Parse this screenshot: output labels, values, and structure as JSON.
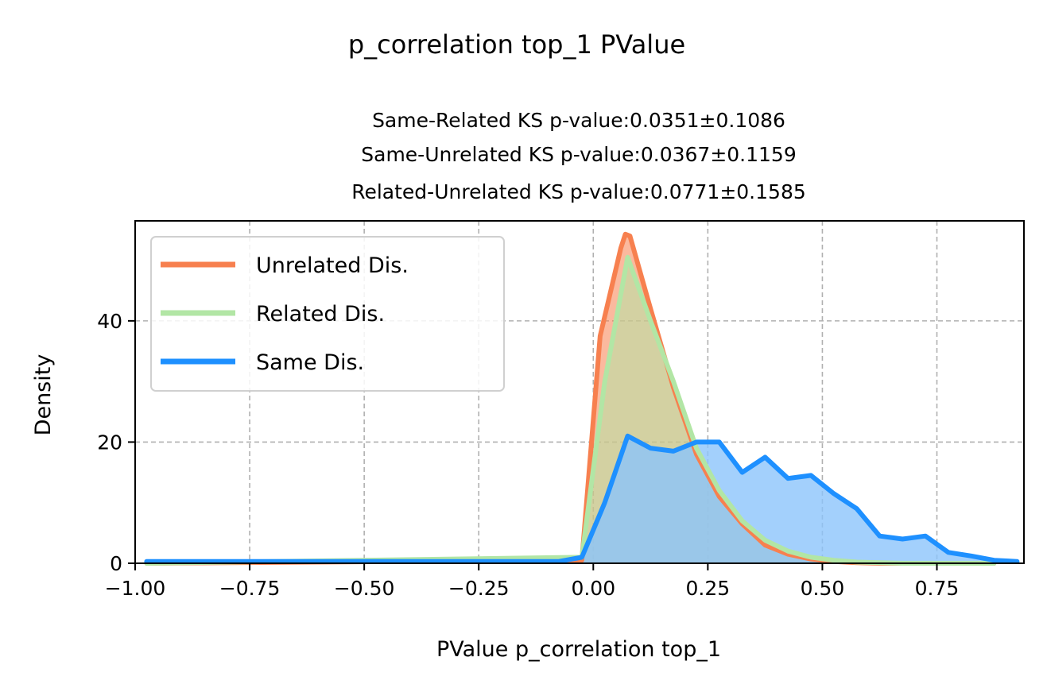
{
  "chart_data": {
    "type": "area",
    "title": "p_correlation top_1 PValue",
    "subtitle_lines": [
      "Same-Related KS p-value:0.0351±0.1086",
      "Same-Unrelated KS p-value:0.0367±0.1159",
      "Related-Unrelated KS p-value:0.0771±0.1585"
    ],
    "xlabel": "PValue p_correlation top_1",
    "ylabel": "Density",
    "xlim": [
      -1.0,
      0.94
    ],
    "ylim": [
      0,
      56.5
    ],
    "xticks": [
      -1.0,
      -0.75,
      -0.5,
      -0.25,
      0.0,
      0.25,
      0.5,
      0.75
    ],
    "xtick_labels": [
      "−1.00",
      "−0.75",
      "−0.50",
      "−0.25",
      "0.00",
      "0.25",
      "0.50",
      "0.75"
    ],
    "yticks": [
      0,
      20,
      40
    ],
    "ytick_labels": [
      "0",
      "20",
      "40"
    ],
    "grid": true,
    "legend_position": "upper-left",
    "series": [
      {
        "name": "Unrelated Dis.",
        "color": "#f7804f",
        "fill": "#f7804f",
        "x": [
          -0.975,
          -0.025,
          0.015,
          0.06,
          0.07,
          0.08,
          0.125,
          0.175,
          0.225,
          0.275,
          0.325,
          0.375,
          0.425,
          0.475,
          0.525,
          0.575,
          0.625,
          0.675,
          0.725,
          0.775,
          0.825,
          0.875
        ],
        "y": [
          0.0,
          0.5,
          37.5,
          52.0,
          54.3,
          54.0,
          42.0,
          29.0,
          18.0,
          11.0,
          6.5,
          3.0,
          1.5,
          0.7,
          0.3,
          0.1,
          0.0,
          0.0,
          0.0,
          0.0,
          0.0,
          0.0
        ]
      },
      {
        "name": "Related Dis.",
        "color": "#b2e6a5",
        "fill": "#b2e6a5",
        "x": [
          -0.975,
          -0.025,
          0.025,
          0.075,
          0.125,
          0.175,
          0.225,
          0.275,
          0.325,
          0.375,
          0.425,
          0.475,
          0.525,
          0.575,
          0.625,
          0.675,
          0.725,
          0.775,
          0.825,
          0.875
        ],
        "y": [
          0.0,
          1.0,
          30.0,
          50.5,
          40.0,
          30.0,
          19.0,
          12.0,
          7.0,
          3.8,
          2.0,
          1.0,
          0.5,
          0.2,
          0.1,
          0.0,
          0.0,
          0.0,
          0.0,
          0.0
        ]
      },
      {
        "name": "Same Dis.",
        "color": "#1e90ff",
        "fill": "#8cc4fb",
        "x": [
          -0.975,
          -0.925,
          -0.875,
          -0.825,
          -0.775,
          -0.725,
          -0.675,
          -0.625,
          -0.575,
          -0.525,
          -0.475,
          -0.425,
          -0.375,
          -0.325,
          -0.275,
          -0.225,
          -0.175,
          -0.125,
          -0.075,
          -0.025,
          0.025,
          0.075,
          0.125,
          0.175,
          0.225,
          0.275,
          0.325,
          0.375,
          0.425,
          0.475,
          0.525,
          0.575,
          0.625,
          0.675,
          0.725,
          0.775,
          0.825,
          0.875,
          0.925
        ],
        "y": [
          0.3,
          0.3,
          0.3,
          0.3,
          0.3,
          0.3,
          0.3,
          0.3,
          0.3,
          0.3,
          0.3,
          0.3,
          0.3,
          0.3,
          0.3,
          0.3,
          0.3,
          0.3,
          0.3,
          1.0,
          10.0,
          21.0,
          19.0,
          18.5,
          20.0,
          20.0,
          15.0,
          17.5,
          14.0,
          14.5,
          11.5,
          9.0,
          4.5,
          4.0,
          4.5,
          1.8,
          1.2,
          0.5,
          0.3
        ]
      }
    ]
  }
}
